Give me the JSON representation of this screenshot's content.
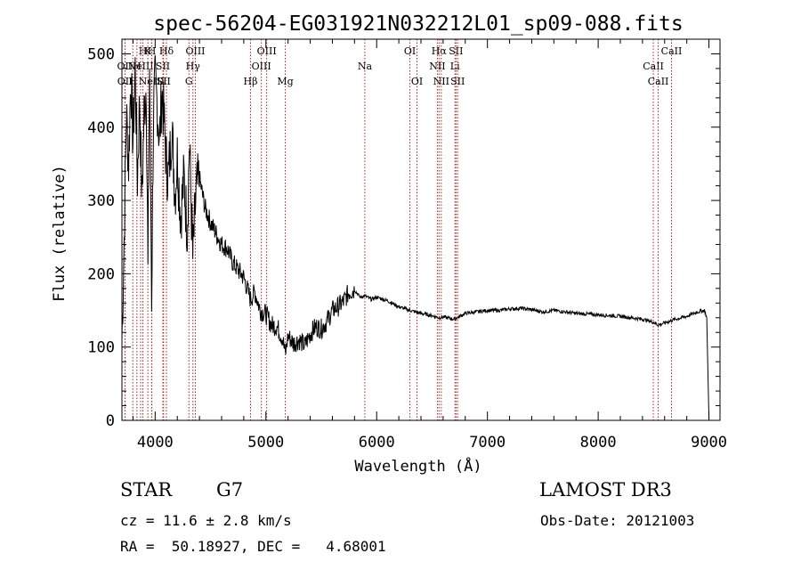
{
  "chart_data": {
    "type": "line",
    "title": "spec-56204-EG031921N032212L01_sp09-088.fits",
    "xlabel": "Wavelength (Å)",
    "ylabel": "Flux (relative)",
    "xlim": [
      3700,
      9100
    ],
    "ylim": [
      0,
      520
    ],
    "xticks": [
      4000,
      5000,
      6000,
      7000,
      8000,
      9000
    ],
    "yticks": [
      0,
      100,
      200,
      300,
      400,
      500
    ],
    "series": [
      {
        "name": "flux",
        "x": [
          3700,
          3720,
          3740,
          3760,
          3780,
          3800,
          3820,
          3840,
          3860,
          3880,
          3900,
          3920,
          3935,
          3950,
          3968,
          3985,
          4000,
          4020,
          4040,
          4060,
          4080,
          4102,
          4120,
          4150,
          4180,
          4200,
          4230,
          4260,
          4290,
          4310,
          4340,
          4370,
          4400,
          4450,
          4500,
          4550,
          4600,
          4650,
          4700,
          4750,
          4800,
          4861,
          4900,
          4950,
          5000,
          5050,
          5100,
          5150,
          5175,
          5200,
          5250,
          5300,
          5350,
          5400,
          5450,
          5500,
          5550,
          5600,
          5650,
          5700,
          5750,
          5800,
          5850,
          5893,
          5950,
          6000,
          6100,
          6200,
          6300,
          6400,
          6500,
          6563,
          6600,
          6700,
          6800,
          6900,
          7000,
          7100,
          7200,
          7300,
          7400,
          7500,
          7600,
          7700,
          7800,
          7900,
          8000,
          8100,
          8200,
          8300,
          8400,
          8500,
          8542,
          8600,
          8700,
          8800,
          8900,
          8960,
          8980,
          9000
        ],
        "y": [
          110,
          250,
          420,
          350,
          470,
          380,
          480,
          330,
          440,
          300,
          420,
          460,
          200,
          480,
          170,
          420,
          460,
          430,
          380,
          450,
          410,
          350,
          330,
          400,
          310,
          360,
          280,
          330,
          260,
          380,
          220,
          310,
          330,
          290,
          270,
          255,
          240,
          235,
          215,
          205,
          195,
          165,
          175,
          150,
          145,
          130,
          128,
          112,
          90,
          115,
          105,
          110,
          102,
          118,
          128,
          125,
          135,
          150,
          155,
          162,
          175,
          178,
          168,
          170,
          165,
          168,
          163,
          155,
          150,
          146,
          143,
          140,
          141,
          138,
          146,
          148,
          150,
          150,
          152,
          153,
          151,
          148,
          150,
          148,
          146,
          145,
          144,
          143,
          142,
          140,
          138,
          134,
          130,
          133,
          138,
          142,
          148,
          150,
          140,
          0
        ]
      }
    ],
    "lines": [
      {
        "label": "OII",
        "x": 3727,
        "row": 2
      },
      {
        "label": "OII",
        "x": 3729,
        "row": 3
      },
      {
        "label": "H",
        "x": 3970,
        "row": 1
      },
      {
        "label": "K",
        "x": 3934,
        "row": 1
      },
      {
        "label": "H",
        "x": 3889,
        "row": 1
      },
      {
        "label": "H",
        "x": 3835,
        "row": 2
      },
      {
        "label": "H",
        "x": 3798,
        "row": 3
      },
      {
        "label": "NeIII",
        "x": 3869,
        "row": 2
      },
      {
        "label": "NeIII",
        "x": 3968,
        "row": 3
      },
      {
        "label": "SII",
        "x": 4070,
        "row": 2
      },
      {
        "label": "SII",
        "x": 4076,
        "row": 3
      },
      {
        "label": "Hδ",
        "x": 4102,
        "row": 1
      },
      {
        "label": "OIII",
        "x": 4363,
        "row": 1
      },
      {
        "label": "Hγ",
        "x": 4341,
        "row": 2
      },
      {
        "label": "G",
        "x": 4305,
        "row": 3
      },
      {
        "label": "OIII",
        "x": 5007,
        "row": 1
      },
      {
        "label": "OIII",
        "x": 4959,
        "row": 2
      },
      {
        "label": "Hβ",
        "x": 4861,
        "row": 3
      },
      {
        "label": "Mg",
        "x": 5175,
        "row": 3
      },
      {
        "label": "Na",
        "x": 5893,
        "row": 2
      },
      {
        "label": "OI",
        "x": 6300,
        "row": 1
      },
      {
        "label": "OI",
        "x": 6364,
        "row": 3
      },
      {
        "label": "Hα",
        "x": 6563,
        "row": 1
      },
      {
        "label": "NII",
        "x": 6548,
        "row": 2
      },
      {
        "label": "NII",
        "x": 6583,
        "row": 3
      },
      {
        "label": "SII",
        "x": 6716,
        "row": 1
      },
      {
        "label": "Li",
        "x": 6707,
        "row": 2
      },
      {
        "label": "SII",
        "x": 6731,
        "row": 3
      },
      {
        "label": "CaII",
        "x": 8662,
        "row": 1
      },
      {
        "label": "CaII",
        "x": 8498,
        "row": 2
      },
      {
        "label": "CaII",
        "x": 8542,
        "row": 3
      }
    ]
  },
  "info": {
    "class": "STAR",
    "subclass": "G7",
    "survey": "LAMOST DR3",
    "cz": "cz = 11.6 ± 2.8 km/s",
    "obs_date": "Obs-Date: 20121003",
    "radec": "RA =  50.18927, DEC =   4.68001"
  }
}
